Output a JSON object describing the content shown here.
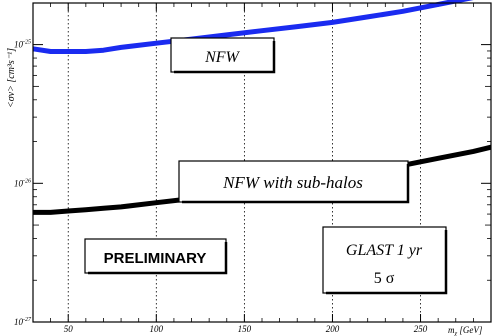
{
  "chart_data": {
    "type": "line",
    "xlabel": "m",
    "xlabel_sub": "χ",
    "xlabel_unit": "[GeV]",
    "ylabel": "<σv> [cm³s⁻¹]",
    "yscale": "log",
    "xlim": [
      30,
      290
    ],
    "ylim": [
      -27,
      -24.7
    ],
    "grid": "vertical dotted at x ticks",
    "x_ticks": [
      {
        "value": 50,
        "label": "50"
      },
      {
        "value": 100,
        "label": "100"
      },
      {
        "value": 150,
        "label": "150"
      },
      {
        "value": 200,
        "label": "200"
      },
      {
        "value": 250,
        "label": "250"
      }
    ],
    "y_ticks": [
      {
        "exp": -25,
        "base": "10",
        "power": "-25"
      },
      {
        "exp": -26,
        "base": "10",
        "power": "-26"
      },
      {
        "exp": -27,
        "base": "10",
        "power": "-27"
      }
    ],
    "series": [
      {
        "name": "NFW",
        "color": "#1a2bf0",
        "x": [
          30,
          40,
          50,
          60,
          70,
          80,
          100,
          120,
          140,
          160,
          180,
          200,
          220,
          240,
          260,
          280,
          290
        ],
        "log10_y": [
          -25.03,
          -25.05,
          -25.05,
          -25.05,
          -25.04,
          -25.02,
          -24.99,
          -24.96,
          -24.93,
          -24.9,
          -24.87,
          -24.84,
          -24.8,
          -24.76,
          -24.71,
          -24.66,
          -24.63
        ]
      },
      {
        "name": "NFW with sub-halos",
        "color": "#000000",
        "x": [
          30,
          40,
          50,
          60,
          70,
          80,
          100,
          120,
          140,
          160,
          180,
          200,
          220,
          240,
          260,
          280,
          290
        ],
        "log10_y": [
          -26.21,
          -26.21,
          -26.2,
          -26.19,
          -26.18,
          -26.17,
          -26.14,
          -26.11,
          -26.08,
          -26.04,
          -26.0,
          -25.96,
          -25.92,
          -25.87,
          -25.82,
          -25.77,
          -25.74
        ]
      }
    ],
    "annotations": [
      {
        "text": "NFW",
        "style": "italic"
      },
      {
        "text": "NFW with sub-halos",
        "style": "italic"
      },
      {
        "text": "PRELIMINARY",
        "style": "bold"
      },
      {
        "text": "GLAST 1 yr",
        "style": "italic"
      },
      {
        "text": "5 σ",
        "style": "normal"
      }
    ]
  }
}
